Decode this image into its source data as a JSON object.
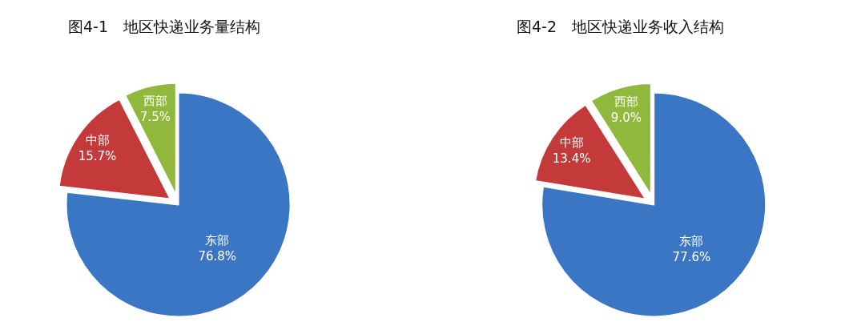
{
  "chart_data": [
    {
      "type": "pie",
      "title": "图4-1　地区快递业务量结构",
      "categories": [
        "东部",
        "中部",
        "西部"
      ],
      "values": [
        76.8,
        15.7,
        7.5
      ],
      "colors": [
        "#3a76c4",
        "#c43a3a",
        "#8fb83c"
      ],
      "value_labels": [
        "76.8%",
        "15.7%",
        "7.5%"
      ]
    },
    {
      "type": "pie",
      "title": "图4-2　地区快递业务收入结构",
      "categories": [
        "东部",
        "中部",
        "西部"
      ],
      "values": [
        77.6,
        13.4,
        9.0
      ],
      "colors": [
        "#3a76c4",
        "#c43a3a",
        "#8fb83c"
      ],
      "value_labels": [
        "77.6%",
        "13.4%",
        "9.0%"
      ]
    }
  ]
}
